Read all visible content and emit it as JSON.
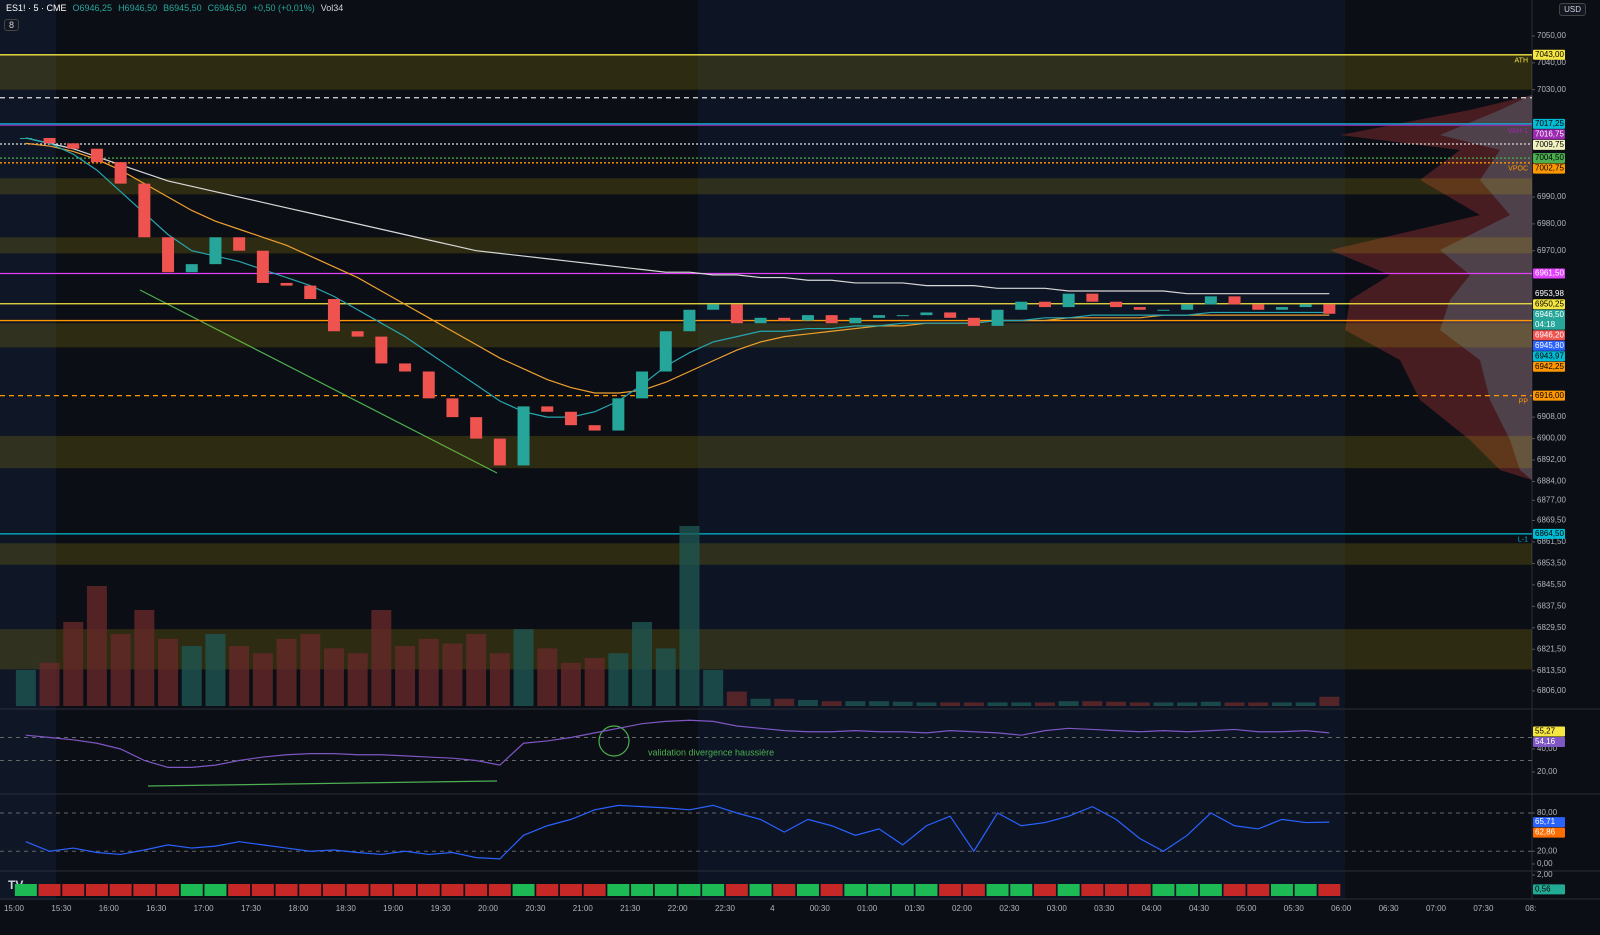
{
  "header": {
    "symbol": "ES1! · 5 · CME",
    "open": "O6946,25",
    "high": "H6946,50",
    "bid": "B6945,50",
    "close": "C6946,50",
    "change": "+0,50 (+0,01%)",
    "volume": "Vol34",
    "indicator_count": "8"
  },
  "currency": "USD",
  "annotation": "validation divergence haussière",
  "time_labels": [
    "15:00",
    "15:30",
    "16:00",
    "16:30",
    "17:00",
    "17:30",
    "18:00",
    "18:30",
    "19:00",
    "19:30",
    "20:00",
    "20:30",
    "21:00",
    "21:30",
    "22:00",
    "22:30",
    "4",
    "00:30",
    "01:00",
    "01:30",
    "02:00",
    "02:30",
    "03:00",
    "03:30",
    "04:00",
    "04:30",
    "05:00",
    "05:30",
    "06:00",
    "06:30",
    "07:00",
    "07:30",
    "08:"
  ],
  "price": {
    "closes": [
      7012,
      7010,
      7008,
      7003,
      6995,
      6975,
      6962,
      6965,
      6975,
      6970,
      6958,
      6957,
      6952,
      6940,
      6938,
      6928,
      6925,
      6915,
      6908,
      6900,
      6890,
      6912,
      6910,
      6905,
      6903,
      6915,
      6925,
      6940,
      6948,
      6950,
      6943,
      6945,
      6944,
      6946,
      6943,
      6945,
      6946,
      6946,
      6947,
      6945,
      6942,
      6948,
      6951,
      6949,
      6954,
      6951,
      6949,
      6948,
      6948,
      6950,
      6953,
      6950,
      6948,
      6949,
      6950,
      6946.5
    ],
    "volumes": [
      1500,
      1800,
      3500,
      5000,
      3000,
      4000,
      2800,
      2500,
      3000,
      2500,
      2200,
      2800,
      3000,
      2400,
      2200,
      4000,
      2500,
      2800,
      2600,
      3000,
      2200,
      3200,
      2400,
      1800,
      2000,
      2200,
      3500,
      2400,
      7500,
      1500,
      600,
      300,
      300,
      250,
      200,
      200,
      200,
      180,
      150,
      150,
      150,
      150,
      150,
      150,
      200,
      200,
      180,
      150,
      150,
      150,
      180,
      150,
      150,
      150,
      150,
      385
    ],
    "overlays": [
      {
        "color": "#d8d8d8",
        "values": [
          7012,
          7010,
          7008,
          7005,
          7002,
          6999,
          6996,
          6994,
          6992,
          6990,
          6988,
          6986,
          6984,
          6982,
          6980,
          6978,
          6976,
          6974,
          6972,
          6970,
          6969,
          6968,
          6967,
          6966,
          6965,
          6964,
          6963,
          6962,
          6962,
          6961,
          6961,
          6960,
          6960,
          6959,
          6959,
          6958,
          6958,
          6958,
          6957,
          6957,
          6957,
          6956,
          6956,
          6956,
          6955,
          6955,
          6955,
          6955,
          6955,
          6954,
          6954,
          6954,
          6954,
          6954,
          6954,
          6954
        ]
      },
      {
        "color": "#f0a030",
        "values": [
          7010,
          7009,
          7007,
          7004,
          7000,
          6995,
          6990,
          6985,
          6981,
          6978,
          6975,
          6972,
          6968,
          6964,
          6960,
          6955,
          6950,
          6945,
          6940,
          6935,
          6930,
          6926,
          6922,
          6919,
          6917,
          6917,
          6918,
          6921,
          6925,
          6929,
          6933,
          6936,
          6938,
          6939,
          6940,
          6941,
          6942,
          6942,
          6943,
          6943,
          6943,
          6944,
          6944,
          6944,
          6945,
          6945,
          6945,
          6945,
          6946,
          6946,
          6946,
          6946,
          6946,
          6946,
          6946,
          6946
        ]
      },
      {
        "color": "#26a6b0",
        "values": [
          7012,
          7010,
          7006,
          7000,
          6992,
          6984,
          6976,
          6970,
          6968,
          6966,
          6963,
          6960,
          6957,
          6953,
          6948,
          6943,
          6938,
          6932,
          6926,
          6920,
          6914,
          6910,
          6908,
          6908,
          6910,
          6914,
          6920,
          6927,
          6932,
          6936,
          6938,
          6940,
          6940,
          6941,
          6941,
          6942,
          6942,
          6943,
          6943,
          6943,
          6943,
          6944,
          6944,
          6945,
          6945,
          6946,
          6946,
          6946,
          6946,
          6946,
          6947,
          6947,
          6947,
          6947,
          6947,
          6947
        ]
      }
    ],
    "axis_ticks": [
      {
        "value": 7050,
        "label": "7050,00"
      },
      {
        "value": 7040,
        "label": "7040,00"
      },
      {
        "value": 7030,
        "label": "7030,00"
      },
      {
        "value": 6990,
        "label": "6990,00"
      },
      {
        "value": 6980,
        "label": "6980,00"
      },
      {
        "value": 6970,
        "label": "6970,00"
      },
      {
        "value": 6908,
        "label": "6908,00"
      },
      {
        "value": 6900,
        "label": "6900,00"
      },
      {
        "value": 6892,
        "label": "6892,00"
      },
      {
        "value": 6884,
        "label": "6884,00"
      },
      {
        "value": 6877,
        "label": "6877,00"
      },
      {
        "value": 6869.5,
        "label": "6869,50"
      },
      {
        "value": 6861.5,
        "label": "6861,50"
      },
      {
        "value": 6853.5,
        "label": "6853,50"
      },
      {
        "value": 6845.5,
        "label": "6845,50"
      },
      {
        "value": 6837.5,
        "label": "6837,50"
      },
      {
        "value": 6829.5,
        "label": "6829,50"
      },
      {
        "value": 6821.5,
        "label": "6821,50"
      },
      {
        "value": 6813.5,
        "label": "6813,50"
      },
      {
        "value": 6806,
        "label": "6806,00"
      }
    ],
    "tags": [
      {
        "value": 7043,
        "label": "7043,00",
        "color": "#f5e642",
        "text_color": "#000000"
      },
      {
        "value": 7017.25,
        "label": "7017,25",
        "color": "#00bcd4",
        "text_color": "#000000"
      },
      {
        "value": 7016.75,
        "label": "7016,75",
        "color": "#9c27b0",
        "text_color": "#ffffff"
      },
      {
        "value": 7009.75,
        "label": "7009,75",
        "color": "#f2f2c0",
        "text_color": "#000000"
      },
      {
        "value": 7004.5,
        "label": "7004,50",
        "color": "#4caf50",
        "text_color": "#000000"
      },
      {
        "value": 7002.75,
        "label": "7002,75",
        "color": "#ff9800",
        "text_color": "#000000"
      },
      {
        "value": 6961.5,
        "label": "6961,50",
        "color": "#e040fb",
        "text_color": "#ffffff"
      },
      {
        "value": 6953.98,
        "label": "6953,98",
        "color": "#0c0e15",
        "text_color": "#ffffff"
      },
      {
        "value": 6950.25,
        "label": "6950,25",
        "color": "#f5e642",
        "text_color": "#000000"
      },
      {
        "value": 6946.5,
        "label": "6946,50",
        "color": "#26a69a",
        "text_color": "#ffffff",
        "countdown": "04:18"
      },
      {
        "value": 6946.2,
        "label": "6946,20",
        "color": "#ef5350",
        "text_color": "#ffffff"
      },
      {
        "value": 6945.8,
        "label": "6945,80",
        "color": "#2962ff",
        "text_color": "#ffffff"
      },
      {
        "value": 6943.97,
        "label": "6943,97",
        "color": "#00bcd4",
        "text_color": "#000000"
      },
      {
        "value": 6942.25,
        "label": "6942,25",
        "color": "#ff9800",
        "text_color": "#000000"
      },
      {
        "value": 6916,
        "label": "6916,00",
        "color": "#ff9800",
        "text_color": "#000000"
      },
      {
        "value": 6864.5,
        "label": "6864,50",
        "color": "#00bcd4",
        "text_color": "#000000"
      }
    ],
    "levels": [
      {
        "value": 7043,
        "color": "#f5e642",
        "style": "solid",
        "label": "ATH"
      },
      {
        "value": 7027,
        "color": "#e0e0e0",
        "style": "dashed"
      },
      {
        "value": 7017.25,
        "color": "#00bcd4",
        "style": "solid"
      },
      {
        "value": 7016.75,
        "color": "#9c27b0",
        "style": "solid",
        "label": "VAH-1"
      },
      {
        "value": 7009.75,
        "color": "#e0e0e0",
        "style": "dotted"
      },
      {
        "value": 7004.5,
        "color": "#4caf50",
        "style": "dotted"
      },
      {
        "value": 7002.75,
        "color": "#ff9800",
        "style": "dotted",
        "label": "VPOC"
      },
      {
        "value": 6961.5,
        "color": "#e040fb",
        "style": "solid"
      },
      {
        "value": 6950.25,
        "color": "#f5e642",
        "style": "solid"
      },
      {
        "value": 6943.97,
        "color": "#ff9800",
        "style": "solid"
      },
      {
        "value": 6916,
        "color": "#ff9800",
        "style": "dashed",
        "label": "PP"
      },
      {
        "value": 6864.5,
        "color": "#00bcd4",
        "style": "solid",
        "label": "L-1"
      }
    ],
    "zones": [
      [
        7043,
        7030
      ],
      [
        6997,
        6991
      ],
      [
        6975,
        6969
      ],
      [
        6943,
        6934
      ],
      [
        6901,
        6889
      ],
      [
        6861,
        6853
      ],
      [
        6829,
        6814
      ]
    ]
  },
  "rsi": {
    "color": "#7e57c2",
    "values": [
      52,
      50,
      48,
      45,
      40,
      30,
      24,
      24,
      26,
      30,
      33,
      35,
      36,
      36,
      35,
      35,
      34,
      33,
      32,
      30,
      26,
      45,
      47,
      50,
      54,
      58,
      62,
      64,
      65,
      64,
      60,
      58,
      56,
      55,
      55,
      56,
      55,
      55,
      54,
      56,
      55,
      54,
      52,
      56,
      58,
      57,
      56,
      55,
      56,
      55,
      56,
      57,
      55,
      55,
      56,
      54
    ],
    "ticks": [
      {
        "value": 40,
        "label": "40,00"
      },
      {
        "value": 20,
        "label": "20,00"
      }
    ],
    "tags": [
      {
        "value": 55.27,
        "label": "55,27",
        "color": "#f5e642",
        "text_color": "#000000"
      },
      {
        "value": 54.16,
        "label": "54,16",
        "color": "#7e57c2",
        "text_color": "#ffffff"
      }
    ]
  },
  "stoch": {
    "color": "#2962ff",
    "values": [
      35,
      20,
      25,
      18,
      15,
      22,
      30,
      25,
      28,
      35,
      30,
      25,
      20,
      22,
      18,
      15,
      20,
      15,
      18,
      10,
      8,
      45,
      60,
      70,
      85,
      92,
      90,
      88,
      85,
      92,
      80,
      70,
      50,
      70,
      60,
      45,
      55,
      30,
      60,
      75,
      20,
      80,
      60,
      65,
      75,
      90,
      70,
      40,
      20,
      45,
      80,
      60,
      55,
      70,
      65,
      65.71
    ],
    "ticks": [
      {
        "value": 80,
        "label": "80,00"
      },
      {
        "value": 20,
        "label": "20,00"
      },
      {
        "value": 0,
        "label": "0,00"
      }
    ],
    "tags": [
      {
        "value": 65.71,
        "label": "65,71",
        "color": "#2962ff",
        "text_color": "#ffffff"
      },
      {
        "value": 62.86,
        "label": "62,86",
        "color": "#ff6d00",
        "text_color": "#ffffff"
      }
    ]
  },
  "strip": {
    "ticks": [
      {
        "value": 2,
        "label": "2,00"
      }
    ],
    "tags": [
      {
        "value": 0.56,
        "label": "0,56",
        "color": "#22ab94",
        "text_color": "#000000"
      }
    ]
  }
}
